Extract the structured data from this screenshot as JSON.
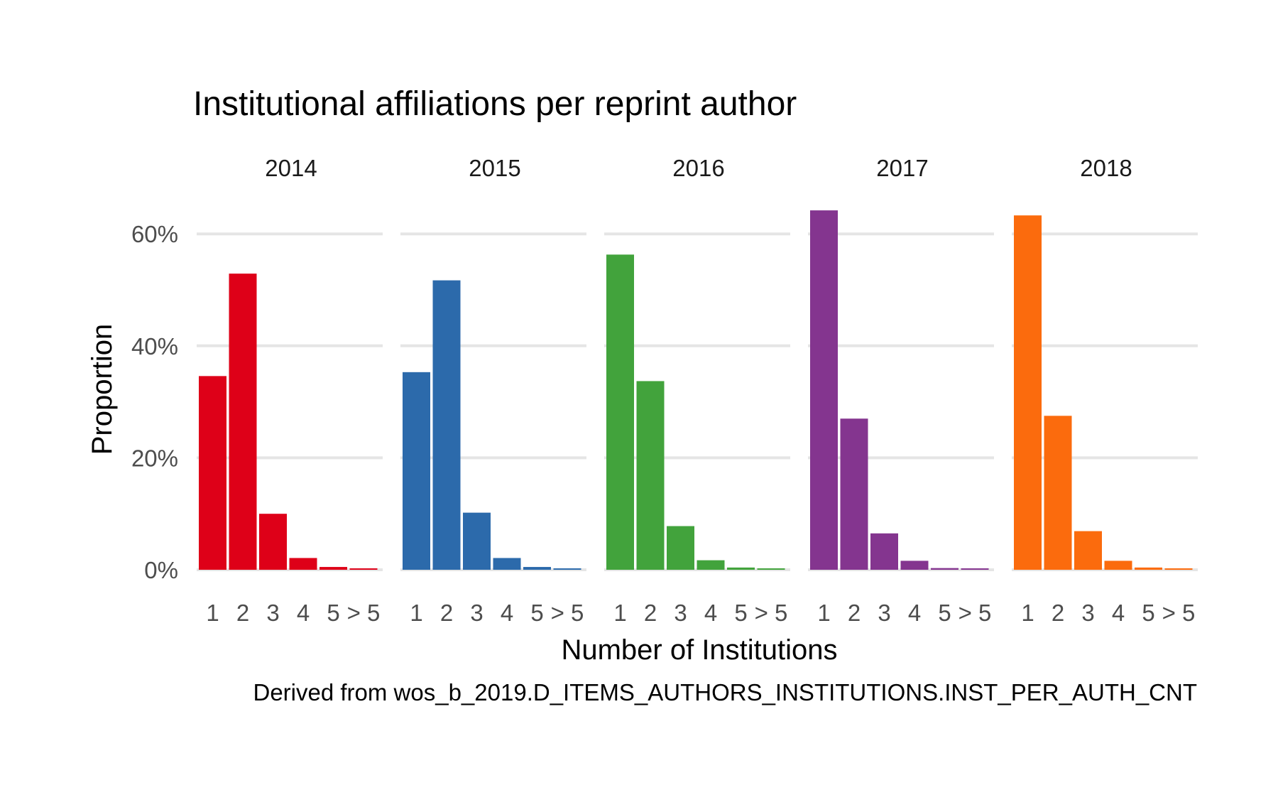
{
  "chart_data": {
    "type": "bar",
    "title": "Institutional affiliations per reprint author",
    "xlabel": "Number of Institutions",
    "ylabel": "Proportion",
    "caption": "Derived from wos_b_2019.D_ITEMS_AUTHORS_INSTITUTIONS.INST_PER_AUTH_CNT",
    "categories": [
      "1",
      "2",
      "3",
      "4",
      "5",
      "> 5"
    ],
    "y_ticks": [
      {
        "value": 0,
        "label": "0%"
      },
      {
        "value": 20,
        "label": "20%"
      },
      {
        "value": 40,
        "label": "40%"
      },
      {
        "value": 60,
        "label": "60%"
      }
    ],
    "ylim": [
      0,
      66
    ],
    "grid": true,
    "legend": "none",
    "facets": [
      {
        "label": "2014",
        "color": "#de0018",
        "values": [
          34.6,
          52.9,
          10.0,
          2.1,
          0.5,
          0.2
        ]
      },
      {
        "label": "2015",
        "color": "#2c6aab",
        "values": [
          35.3,
          51.7,
          10.2,
          2.1,
          0.5,
          0.2
        ]
      },
      {
        "label": "2016",
        "color": "#42a33c",
        "values": [
          56.3,
          33.7,
          7.8,
          1.7,
          0.4,
          0.2
        ]
      },
      {
        "label": "2017",
        "color": "#84358f",
        "values": [
          64.2,
          27.0,
          6.5,
          1.6,
          0.3,
          0.2
        ]
      },
      {
        "label": "2018",
        "color": "#fb6b0d",
        "values": [
          63.3,
          27.5,
          6.9,
          1.6,
          0.4,
          0.2
        ]
      }
    ]
  }
}
